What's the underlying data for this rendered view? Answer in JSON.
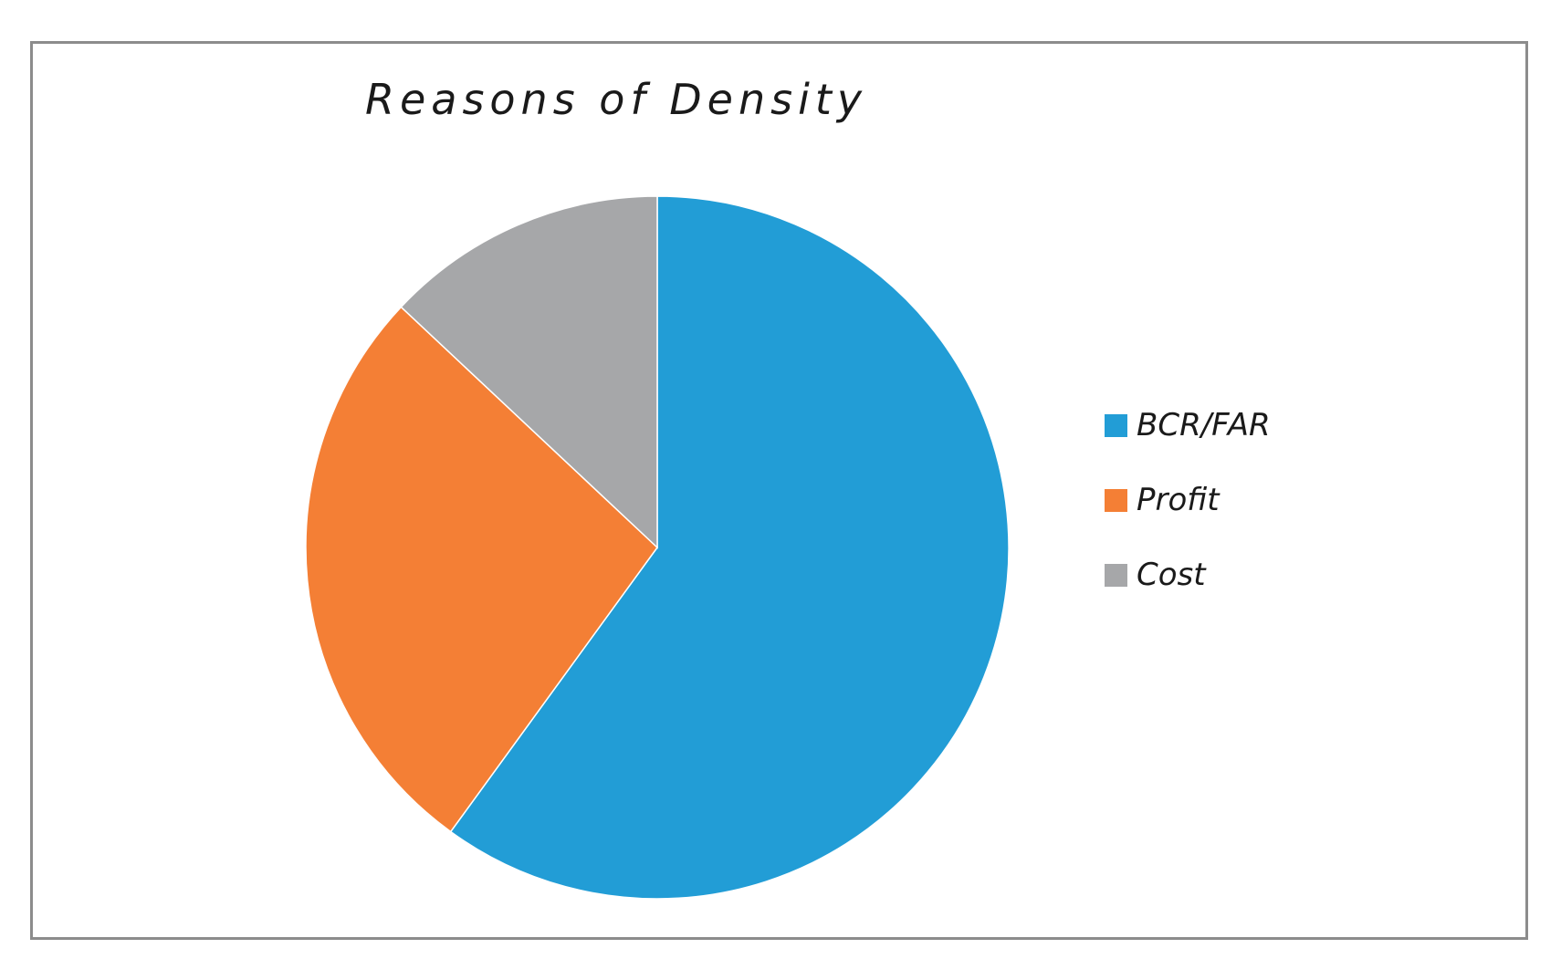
{
  "chart_data": {
    "type": "pie",
    "title": "Reasons of Density",
    "categories": [
      "BCR/FAR",
      "Profit",
      "Cost"
    ],
    "values": [
      60,
      27,
      13
    ],
    "colors": [
      "#229dd6",
      "#f47f35",
      "#a6a7a9"
    ],
    "start_angle_deg": 0,
    "direction": "clockwise",
    "legend": "right"
  }
}
